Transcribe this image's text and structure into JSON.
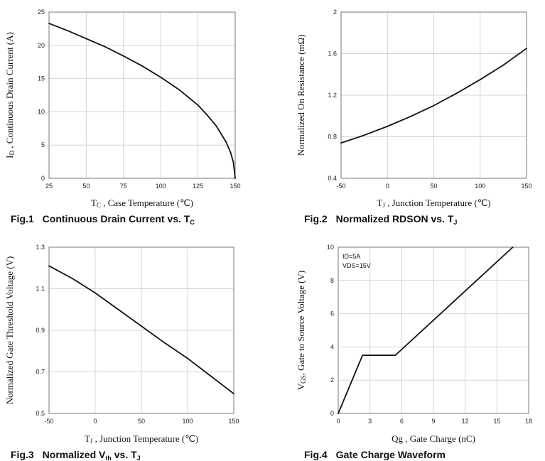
{
  "colors": {
    "line": "#111111",
    "grid": "#d4d4d4",
    "frame": "#777777",
    "text": "#111111"
  },
  "chart_data": [
    {
      "type": "line",
      "caption_number": "Fig.1",
      "title": "Continuous Drain Current vs. T",
      "title_sub": "C",
      "xlabel_main": "T",
      "xlabel_sub": "C",
      "xlabel_rest": " , Case Temperature (℃)",
      "ylabel_main": "I",
      "ylabel_sub": "D",
      "ylabel_rest": " , Continuous Drain Current (A)",
      "xlim": [
        25,
        150
      ],
      "ylim": [
        0,
        25
      ],
      "xticks": [
        25,
        50,
        75,
        100,
        125,
        150
      ],
      "yticks": [
        0,
        5,
        10,
        15,
        20,
        25
      ],
      "grid": true,
      "series": [
        {
          "x": [
            25,
            37.5,
            50,
            62.5,
            75,
            87.5,
            100,
            112.5,
            125,
            131.25,
            137.5,
            143.75,
            146.875,
            148.75,
            150
          ],
          "y": [
            23.3,
            22.2,
            21.0,
            19.8,
            18.4,
            16.9,
            15.2,
            13.3,
            11.0,
            9.5,
            7.8,
            5.5,
            3.9,
            2.45,
            0
          ]
        }
      ]
    },
    {
      "type": "line",
      "caption_number": "Fig.2",
      "title": "Normalized RDSON vs. T",
      "title_sub": "J",
      "xlabel_main": "T",
      "xlabel_sub": "J",
      "xlabel_rest": " , Junction Temperature (℃)",
      "ylabel_main": "Normalized On Resistance (mΩ)",
      "ylabel_sub": "",
      "ylabel_rest": "",
      "xlim": [
        -50,
        150
      ],
      "ylim": [
        0.4,
        2
      ],
      "xticks": [
        -50,
        0,
        50,
        100,
        150
      ],
      "yticks": [
        "0.4",
        "0.8",
        "1.2",
        "1.6",
        "2"
      ],
      "grid": true,
      "series": [
        {
          "x": [
            -50,
            -25,
            0,
            25,
            50,
            75,
            100,
            125,
            150
          ],
          "y": [
            0.74,
            0.815,
            0.9,
            0.995,
            1.1,
            1.22,
            1.35,
            1.49,
            1.65
          ]
        }
      ]
    },
    {
      "type": "line",
      "caption_number": "Fig.3",
      "title": "Normalized V",
      "title_sub": "th",
      "title_rest": " vs. T",
      "title_sub2": "J",
      "xlabel_main": "T",
      "xlabel_sub": "J",
      "xlabel_rest": " , Junction Temperature (℃)",
      "ylabel_main": "Normalized Gate Threshold Voltage (V)",
      "ylabel_sub": "",
      "ylabel_rest": "",
      "xlim": [
        -50,
        150
      ],
      "ylim": [
        0.5,
        1.3
      ],
      "xticks": [
        -50,
        0,
        50,
        100,
        150
      ],
      "yticks": [
        "0.5",
        "0.7",
        "0.9",
        "1.1",
        "1.3"
      ],
      "grid": true,
      "series": [
        {
          "x": [
            -50,
            -25,
            0,
            25,
            50,
            75,
            100,
            125,
            150
          ],
          "y": [
            1.21,
            1.15,
            1.08,
            1.0,
            0.92,
            0.84,
            0.765,
            0.68,
            0.595
          ]
        }
      ]
    },
    {
      "type": "line",
      "caption_number": "Fig.4",
      "title": "Gate Charge Waveform",
      "title_sub": "",
      "xlabel_main": "Qg , Gate Charge (nC)",
      "xlabel_sub": "",
      "xlabel_rest": "",
      "ylabel_main": "V",
      "ylabel_sub": "GS",
      "ylabel_rest": ", Gate to Source Voltage (V)",
      "xlim": [
        0,
        18
      ],
      "ylim": [
        0,
        10
      ],
      "xticks": [
        0,
        3,
        6,
        9,
        12,
        15,
        18
      ],
      "yticks": [
        0,
        2,
        4,
        6,
        8,
        10
      ],
      "grid": true,
      "annotations": [
        "ID=5A",
        "VDS=15V"
      ],
      "series": [
        {
          "x": [
            0,
            2.3,
            5.4,
            16.5
          ],
          "y": [
            0,
            3.5,
            3.5,
            10
          ]
        }
      ]
    }
  ]
}
